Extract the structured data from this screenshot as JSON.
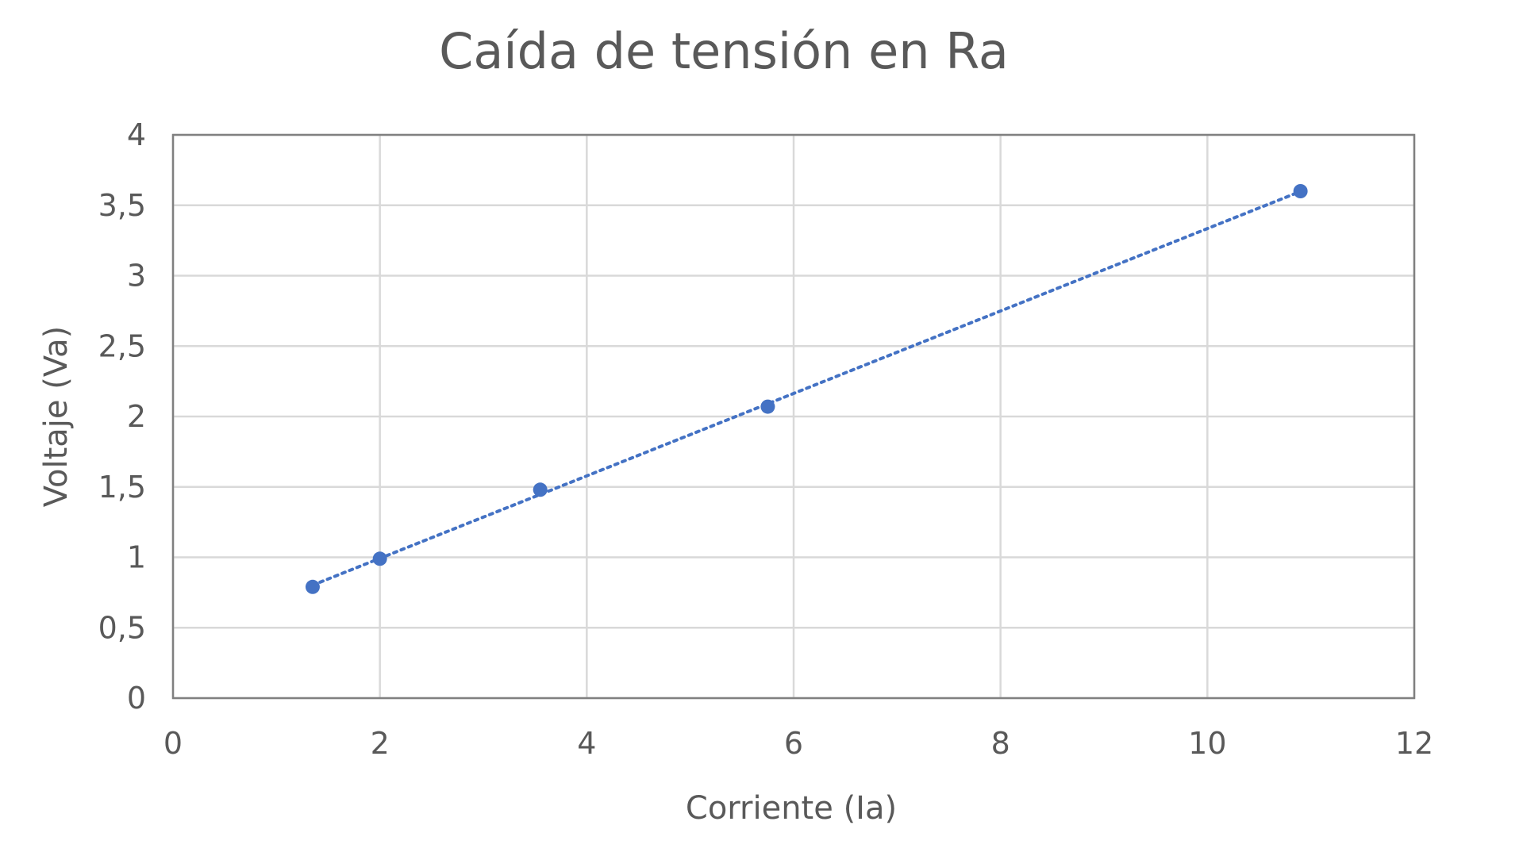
{
  "chart_data": {
    "type": "scatter",
    "title": "Caída de tensión en Ra",
    "xlabel": "Corriente (Ia)",
    "ylabel": "Voltaje (Va)",
    "xlim": [
      0,
      12
    ],
    "ylim": [
      0,
      4
    ],
    "x_ticks": [
      0,
      2,
      4,
      6,
      8,
      10,
      12
    ],
    "y_ticks": [
      0,
      0.5,
      1,
      1.5,
      2,
      2.5,
      3,
      3.5,
      4
    ],
    "x_tick_labels": [
      "0",
      "2",
      "4",
      "6",
      "8",
      "10",
      "12"
    ],
    "y_tick_labels": [
      "0",
      "0,5",
      "1",
      "1,5",
      "2",
      "2,5",
      "3",
      "3,5",
      "4"
    ],
    "grid": true,
    "legend": "none",
    "trendline": {
      "type": "linear",
      "style": "dotted"
    },
    "colors": {
      "series": "#4472C4",
      "grid": "#d9d9d9",
      "plot_border": "#808080",
      "text": "#595959"
    },
    "series": [
      {
        "x": [
          1.35,
          2.0,
          3.55,
          5.75,
          10.9
        ],
        "y": [
          0.79,
          0.99,
          1.48,
          2.07,
          3.6
        ]
      }
    ]
  }
}
